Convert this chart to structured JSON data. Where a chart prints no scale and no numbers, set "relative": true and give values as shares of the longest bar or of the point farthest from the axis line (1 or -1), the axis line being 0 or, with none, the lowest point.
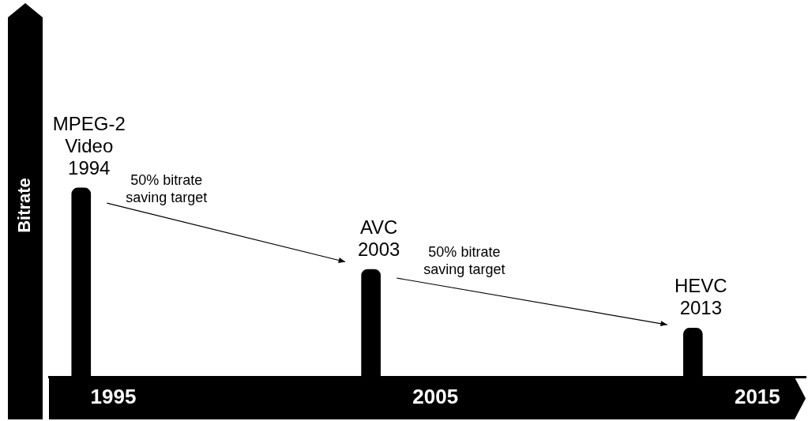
{
  "chart_data": {
    "type": "bar",
    "relative": true,
    "ylabel": "Bitrate",
    "x": [
      1994,
      2003,
      2013
    ],
    "values": [
      1,
      0.57,
      0.26
    ],
    "color": "#000000",
    "xlim": [
      1993,
      2016.5
    ],
    "xticks": [
      1995,
      2005,
      2015
    ],
    "grid": false,
    "legend": false,
    "annotations": [
      {
        "text": "MPEG-2 Video 1994",
        "x": 1994,
        "y": 1
      },
      "50% bitrate saving target",
      {
        "text": "AVC 2003",
        "x": 2003,
        "y": 0.57
      },
      "50% bitrate saving target",
      {
        "text": "HEVC 2013",
        "x": 2013,
        "y": 0.26
      }
    ]
  }
}
